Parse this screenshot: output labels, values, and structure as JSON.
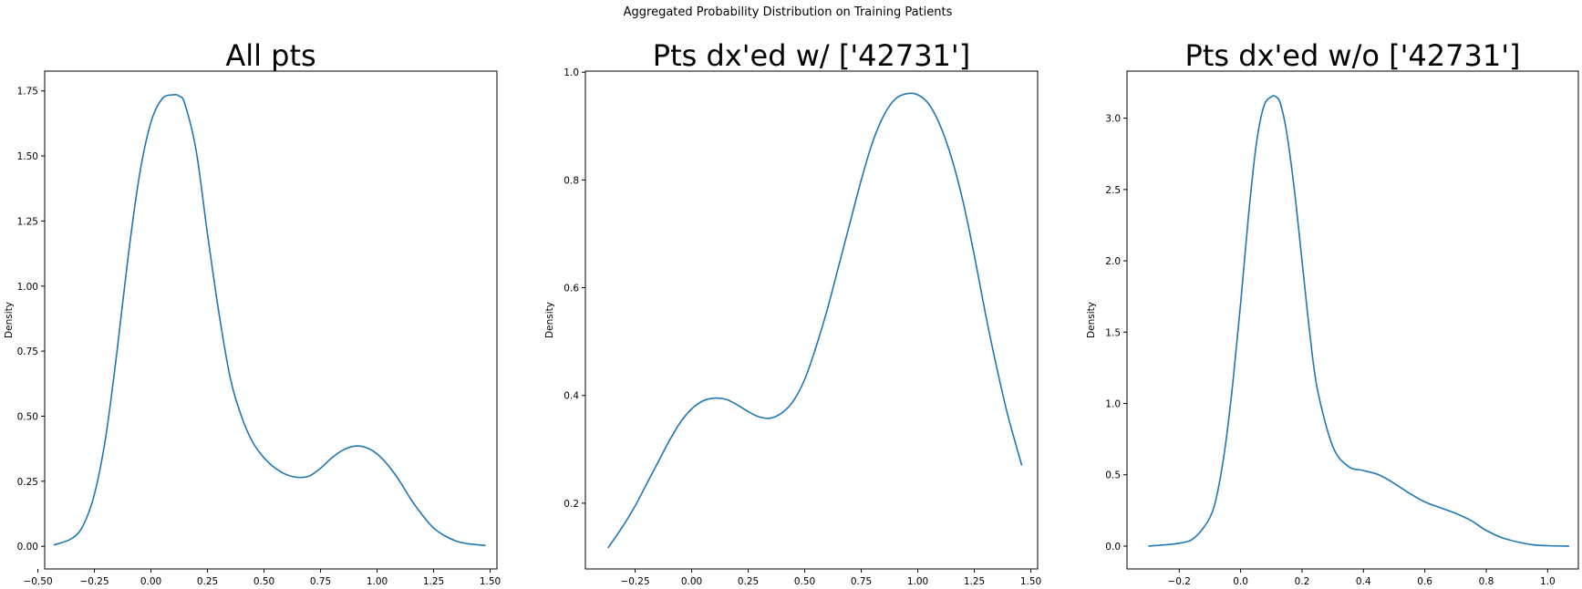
{
  "figure_title": "Aggregated Probability Distribution on Training Patients",
  "colors": {
    "line": "#1f77b4"
  },
  "chart_data": [
    {
      "type": "line",
      "title": "All pts",
      "xlabel": "",
      "ylabel": "Density",
      "xlim": [
        -0.47,
        1.53
      ],
      "ylim": [
        -0.087,
        1.826
      ],
      "xticks": [
        -0.5,
        -0.25,
        0.0,
        0.25,
        0.5,
        0.75,
        1.0,
        1.25,
        1.5
      ],
      "xtick_labels": [
        "−0.50",
        "−0.25",
        "0.00",
        "0.25",
        "0.50",
        "0.75",
        "1.00",
        "1.25",
        "1.50"
      ],
      "yticks": [
        0.0,
        0.25,
        0.5,
        0.75,
        1.0,
        1.25,
        1.5,
        1.75
      ],
      "ytick_labels": [
        "0.00",
        "0.25",
        "0.50",
        "0.75",
        "1.00",
        "1.25",
        "1.50",
        "1.75"
      ],
      "series": [
        {
          "values_x": [
            -0.43,
            -0.35,
            -0.3,
            -0.25,
            -0.2,
            -0.15,
            -0.1,
            -0.05,
            0.0,
            0.05,
            0.1,
            0.125,
            0.15,
            0.2,
            0.25,
            0.3,
            0.35,
            0.4,
            0.45,
            0.5,
            0.55,
            0.6,
            0.65,
            0.7,
            0.75,
            0.8,
            0.85,
            0.9,
            0.95,
            1.0,
            1.05,
            1.1,
            1.15,
            1.2,
            1.25,
            1.3,
            1.35,
            1.4,
            1.48
          ],
          "values_y": [
            0.005,
            0.03,
            0.08,
            0.2,
            0.42,
            0.75,
            1.12,
            1.43,
            1.63,
            1.72,
            1.735,
            1.73,
            1.7,
            1.52,
            1.2,
            0.9,
            0.65,
            0.5,
            0.4,
            0.34,
            0.3,
            0.275,
            0.265,
            0.27,
            0.3,
            0.34,
            0.37,
            0.385,
            0.38,
            0.355,
            0.31,
            0.25,
            0.18,
            0.12,
            0.07,
            0.04,
            0.02,
            0.01,
            0.003
          ]
        }
      ]
    },
    {
      "type": "line",
      "title": "Pts dx'ed w/ ['42731']",
      "xlabel": "",
      "ylabel": "Density",
      "xlim": [
        -0.47,
        1.53
      ],
      "ylim": [
        0.078,
        1.002
      ],
      "xticks": [
        -0.25,
        0.0,
        0.25,
        0.5,
        0.75,
        1.0,
        1.25,
        1.5
      ],
      "xtick_labels": [
        "−0.25",
        "0.00",
        "0.25",
        "0.50",
        "0.75",
        "1.00",
        "1.25",
        "1.50"
      ],
      "yticks": [
        0.2,
        0.4,
        0.6,
        0.8,
        1.0
      ],
      "ytick_labels": [
        "0.2",
        "0.4",
        "0.6",
        "0.8",
        "1.0"
      ],
      "series": [
        {
          "values_x": [
            -0.37,
            -0.3,
            -0.25,
            -0.2,
            -0.15,
            -0.1,
            -0.05,
            0.0,
            0.05,
            0.1,
            0.15,
            0.2,
            0.25,
            0.3,
            0.35,
            0.4,
            0.45,
            0.5,
            0.55,
            0.6,
            0.65,
            0.7,
            0.75,
            0.8,
            0.85,
            0.9,
            0.95,
            1.0,
            1.05,
            1.1,
            1.15,
            1.2,
            1.25,
            1.3,
            1.35,
            1.4,
            1.46
          ],
          "values_y": [
            0.117,
            0.16,
            0.195,
            0.235,
            0.275,
            0.315,
            0.35,
            0.375,
            0.39,
            0.395,
            0.393,
            0.383,
            0.37,
            0.36,
            0.358,
            0.368,
            0.39,
            0.43,
            0.49,
            0.56,
            0.64,
            0.72,
            0.8,
            0.87,
            0.92,
            0.95,
            0.96,
            0.958,
            0.94,
            0.9,
            0.84,
            0.76,
            0.66,
            0.55,
            0.45,
            0.36,
            0.27
          ]
        }
      ]
    },
    {
      "type": "line",
      "title": "Pts dx'ed w/o ['42731']",
      "xlabel": "",
      "ylabel": "Density",
      "xlim": [
        -0.37,
        1.1
      ],
      "ylim": [
        -0.16,
        3.33
      ],
      "xticks": [
        -0.2,
        0.0,
        0.2,
        0.4,
        0.6,
        0.8,
        1.0
      ],
      "xtick_labels": [
        "−0.2",
        "0.0",
        "0.2",
        "0.4",
        "0.6",
        "0.8",
        "1.0"
      ],
      "yticks": [
        0.0,
        0.5,
        1.0,
        1.5,
        2.0,
        2.5,
        3.0
      ],
      "ytick_labels": [
        "0.0",
        "0.5",
        "1.0",
        "1.5",
        "2.0",
        "2.5",
        "3.0"
      ],
      "series": [
        {
          "values_x": [
            -0.3,
            -0.2,
            -0.15,
            -0.1,
            -0.075,
            -0.05,
            -0.025,
            0.0,
            0.025,
            0.05,
            0.075,
            0.1,
            0.115,
            0.13,
            0.15,
            0.175,
            0.2,
            0.225,
            0.25,
            0.3,
            0.35,
            0.4,
            0.45,
            0.5,
            0.55,
            0.6,
            0.65,
            0.7,
            0.75,
            0.8,
            0.85,
            0.9,
            0.95,
            1.0,
            1.07
          ],
          "values_y": [
            0.0,
            0.02,
            0.06,
            0.2,
            0.38,
            0.7,
            1.15,
            1.7,
            2.3,
            2.8,
            3.08,
            3.15,
            3.15,
            3.1,
            2.9,
            2.5,
            2.0,
            1.5,
            1.1,
            0.7,
            0.56,
            0.53,
            0.5,
            0.44,
            0.37,
            0.31,
            0.27,
            0.23,
            0.18,
            0.11,
            0.06,
            0.03,
            0.01,
            0.003,
            0.0
          ]
        }
      ]
    }
  ]
}
